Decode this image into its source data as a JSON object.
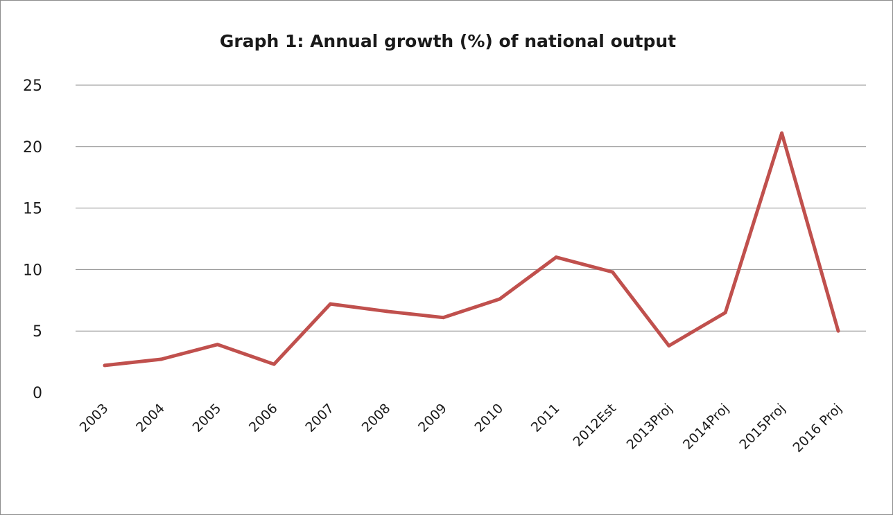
{
  "chart_data": {
    "type": "line",
    "title": "Graph 1: Annual growth (%) of national output",
    "xlabel": "",
    "ylabel": "",
    "categories": [
      "2003",
      "2004",
      "2005",
      "2006",
      "2007",
      "2008",
      "2009",
      "2010",
      "2011",
      "2012Est",
      "2013Proj",
      "2014Proj",
      "2015Proj",
      "2016 Proj"
    ],
    "series": [
      {
        "values": [
          2.2,
          2.7,
          3.9,
          2.3,
          7.2,
          6.6,
          6.1,
          7.6,
          11.0,
          9.8,
          3.8,
          6.5,
          21.1,
          5.0
        ],
        "color": "#c0504d"
      }
    ],
    "ylim": [
      0,
      25
    ],
    "yticks": [
      0,
      5,
      10,
      15,
      20,
      25
    ],
    "grid": true,
    "legend": "none"
  }
}
